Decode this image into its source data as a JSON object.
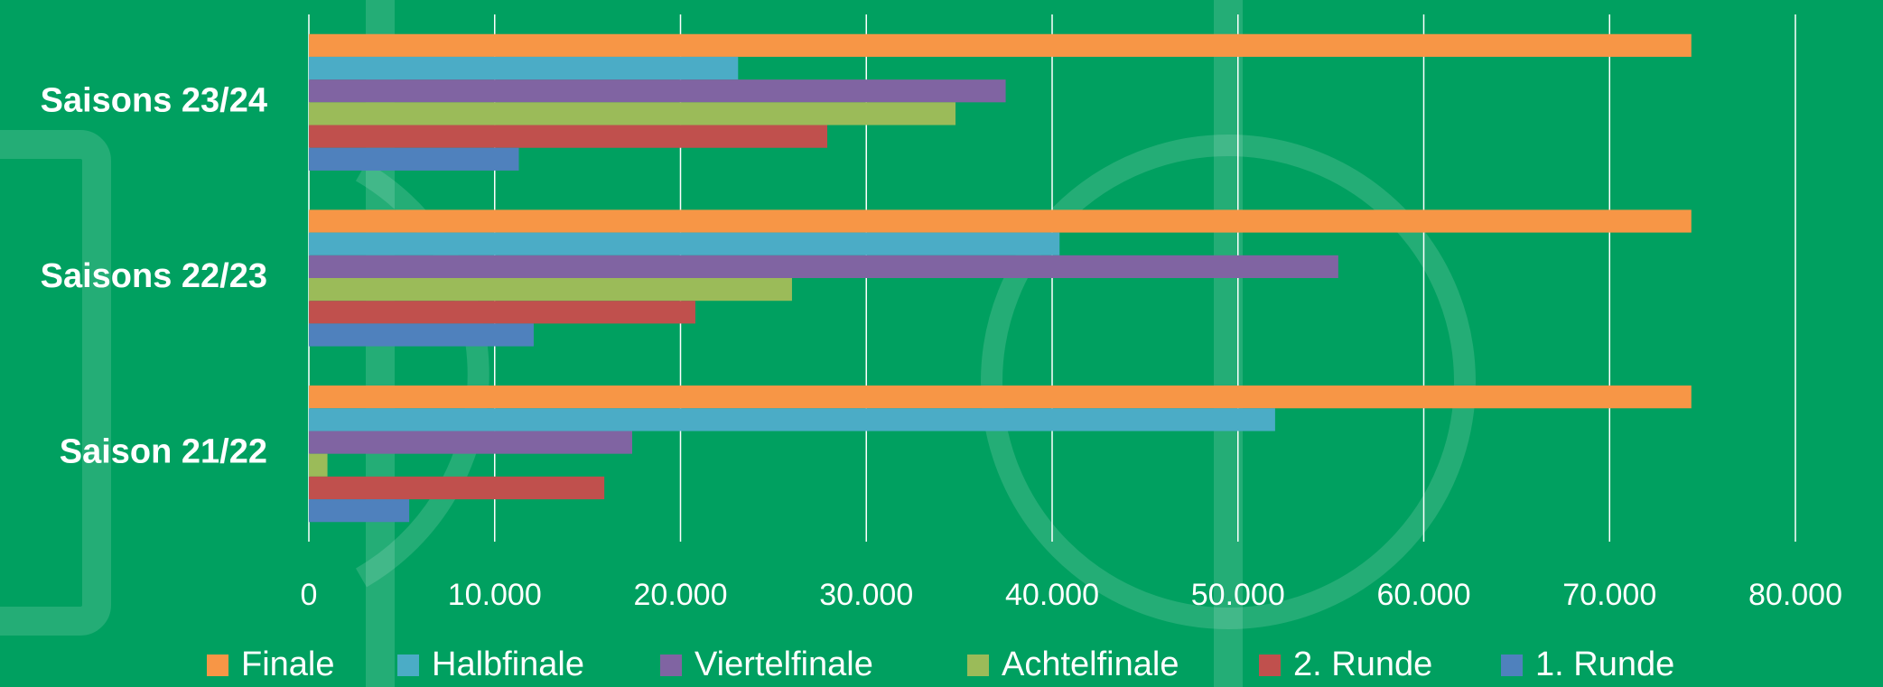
{
  "chart_data": {
    "type": "bar",
    "orientation": "horizontal",
    "categories": [
      "Saisons 23/24",
      "Saisons 22/23",
      "Saison 21/22"
    ],
    "series": [
      {
        "name": "Finale",
        "color": "#f79646",
        "values": [
          74400,
          74400,
          74400
        ]
      },
      {
        "name": "Halbfinale",
        "color": "#4bacc6",
        "values": [
          23100,
          40400,
          52000
        ]
      },
      {
        "name": "Viertelfinale",
        "color": "#8064a2",
        "values": [
          37500,
          55400,
          17400
        ]
      },
      {
        "name": "Achtelfinale",
        "color": "#9bbb59",
        "values": [
          34800,
          26000,
          1000
        ]
      },
      {
        "name": "2. Runde",
        "color": "#c0504d",
        "values": [
          27900,
          20800,
          15900
        ]
      },
      {
        "name": "1. Runde",
        "color": "#4f81bd",
        "values": [
          11300,
          12100,
          5400
        ]
      }
    ],
    "xlim": [
      0,
      80000
    ],
    "xticks": [
      0,
      {
        "value": 10000,
        "label": "10.000"
      },
      {
        "value": 20000,
        "label": "20.000"
      },
      {
        "value": 30000,
        "label": "30.000"
      },
      {
        "value": 40000,
        "label": "40.000"
      },
      {
        "value": 50000,
        "label": "50.000"
      },
      {
        "value": 60000,
        "label": "60.000"
      },
      {
        "value": 70000,
        "label": "70.000"
      },
      {
        "value": 80000,
        "label": "80.000"
      }
    ],
    "grid": true,
    "legend": "bottom"
  }
}
